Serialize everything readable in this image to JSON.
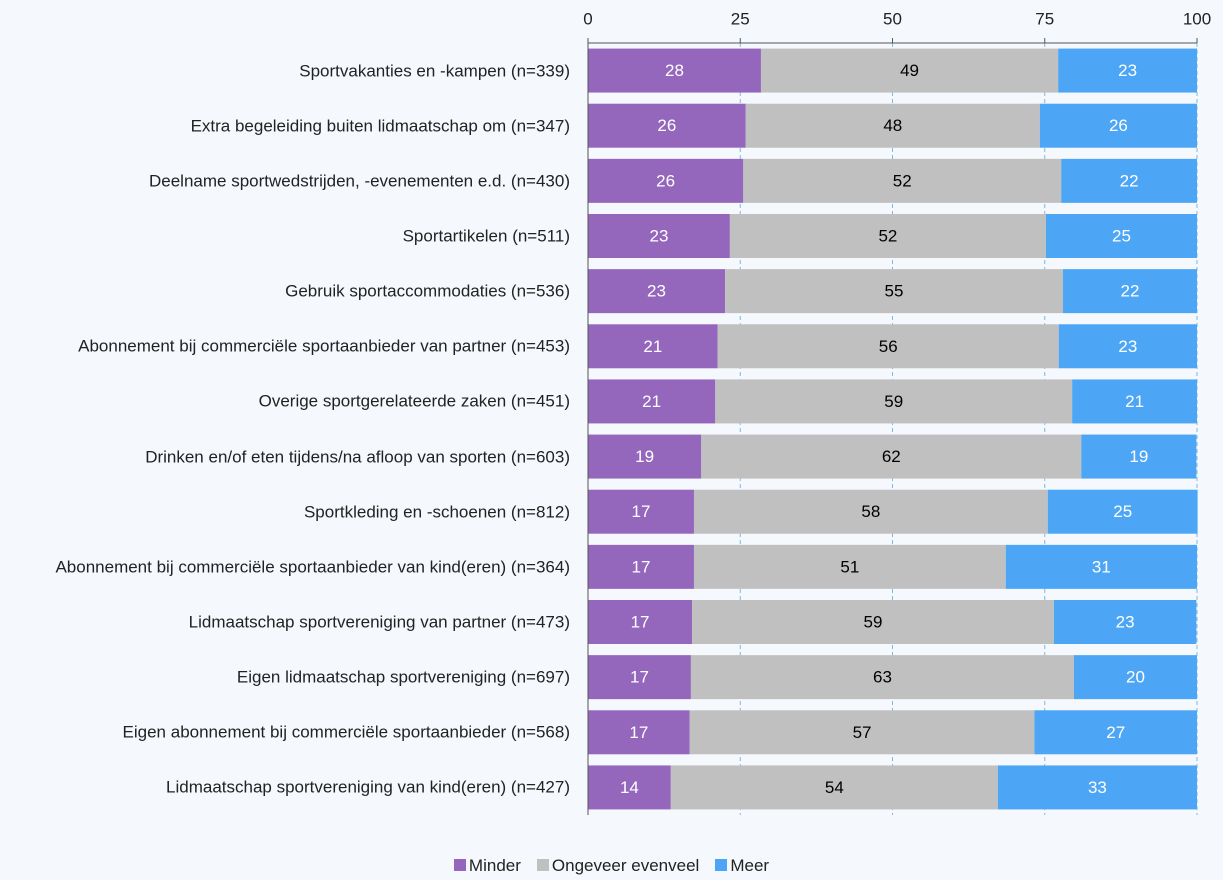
{
  "chart_data": {
    "type": "stacked-bar-horizontal",
    "categories": [
      "Sportvakanties en -kampen (n=339)",
      "Extra begeleiding buiten lidmaatschap om (n=347)",
      "Deelname sportwedstrijden, -evenementen e.d. (n=430)",
      "Sportartikelen (n=511)",
      "Gebruik sportaccommodaties (n=536)",
      "Abonnement bij commerciële sportaanbieder van partner (n=453)",
      "Overige sportgerelateerde zaken (n=451)",
      "Drinken en/of eten tijdens/na afloop van sporten (n=603)",
      "Sportkleding en -schoenen (n=812)",
      "Abonnement bij commerciële sportaanbieder van kind(eren) (n=364)",
      "Lidmaatschap sportvereniging van partner (n=473)",
      "Eigen lidmaatschap sportvereniging (n=697)",
      "Eigen abonnement bij commerciële sportaanbieder (n=568)",
      "Lidmaatschap sportvereniging van kind(eren) (n=427)"
    ],
    "series": [
      {
        "name": "Minder",
        "color": "#9467bd",
        "label_color": "#ffffff",
        "values": [
          28.4,
          25.9,
          25.5,
          23.3,
          22.5,
          21.3,
          20.9,
          18.6,
          17.4,
          17.4,
          17.1,
          16.9,
          16.7,
          13.6
        ],
        "value_labels": [
          "28",
          "26",
          "26",
          "23",
          "23",
          "21",
          "21",
          "19",
          "17",
          "17",
          "17",
          "17",
          "17",
          "14"
        ]
      },
      {
        "name": "Ongeveer evenveel",
        "color": "#c0c0c0",
        "label_color": "#000000",
        "values": [
          48.8,
          48.3,
          52.2,
          51.9,
          55.5,
          56.0,
          58.6,
          62.4,
          58.1,
          51.2,
          59.4,
          62.9,
          56.6,
          53.7
        ],
        "value_labels": [
          "49",
          "48",
          "52",
          "52",
          "55",
          "56",
          "59",
          "62",
          "58",
          "51",
          "59",
          "63",
          "57",
          "54"
        ]
      },
      {
        "name": "Meer",
        "color": "#4da6f5",
        "label_color": "#ffffff",
        "values": [
          22.8,
          25.8,
          22.3,
          24.8,
          22.0,
          22.7,
          20.5,
          18.9,
          24.6,
          31.4,
          23.4,
          20.2,
          26.7,
          32.7
        ],
        "value_labels": [
          "23",
          "26",
          "22",
          "25",
          "22",
          "23",
          "21",
          "19",
          "25",
          "31",
          "23",
          "20",
          "27",
          "33"
        ]
      }
    ],
    "xlim": [
      0,
      100
    ],
    "xticks": [
      0,
      25,
      50,
      75,
      100
    ],
    "grid": true,
    "legend": "bottom"
  }
}
